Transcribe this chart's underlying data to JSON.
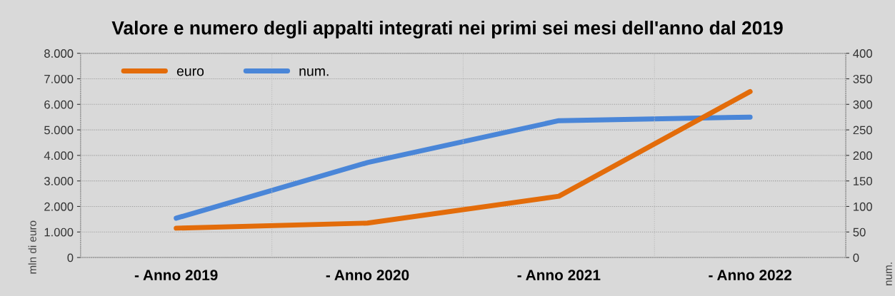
{
  "chart_data": {
    "type": "line",
    "title": "Valore e numero degli appalti integrati nei primi sei mesi dell'anno dal 2019",
    "categories": [
      "- Anno 2019",
      "- Anno 2020",
      "- Anno 2021",
      "- Anno 2022"
    ],
    "series": [
      {
        "name": "euro",
        "color": "#e36c0a",
        "values": [
          1150,
          1350,
          2400,
          6500
        ]
      },
      {
        "name": "num.",
        "color": "#4a86d8",
        "values": [
          77,
          186,
          268,
          275
        ],
        "axis": "y2"
      }
    ],
    "ylabel": "mln di euro",
    "y2label": "num.",
    "ylim": [
      0,
      8000
    ],
    "yticks": [
      {
        "value": 0,
        "label": "0"
      },
      {
        "value": 1000,
        "label": "1.000"
      },
      {
        "value": 2000,
        "label": "2.000"
      },
      {
        "value": 3000,
        "label": "3.000"
      },
      {
        "value": 4000,
        "label": "4.000"
      },
      {
        "value": 5000,
        "label": "5.000"
      },
      {
        "value": 6000,
        "label": "6.000"
      },
      {
        "value": 7000,
        "label": "7.000"
      },
      {
        "value": 8000,
        "label": "8.000"
      }
    ],
    "y2lim": [
      0,
      400
    ],
    "y2ticks": [
      0,
      50,
      100,
      150,
      200,
      250,
      300,
      350,
      400
    ],
    "grid": true,
    "legend": "top left",
    "marker": "none",
    "line_style": "solid"
  }
}
